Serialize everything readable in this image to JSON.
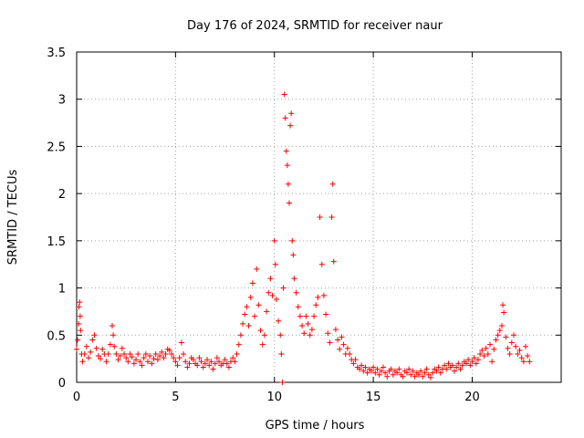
{
  "chart_data": {
    "type": "scatter",
    "title": "Day 176 of 2024, SRMTID for receiver naur",
    "xlabel": "GPS time / hours",
    "ylabel": "SRMTID / TECUs",
    "xlim": [
      0,
      24.5
    ],
    "ylim": [
      0,
      3.5
    ],
    "grid": true,
    "marker": "+",
    "series_color": "#ff0000",
    "x_ticks": [
      {
        "value": 0,
        "label": "0"
      },
      {
        "value": 5,
        "label": "5"
      },
      {
        "value": 10,
        "label": "10"
      },
      {
        "value": 15,
        "label": "15"
      },
      {
        "value": 20,
        "label": "20"
      }
    ],
    "y_ticks": [
      {
        "value": 0,
        "label": "0"
      },
      {
        "value": 0.5,
        "label": "0.5"
      },
      {
        "value": 1,
        "label": "1"
      },
      {
        "value": 1.5,
        "label": "1.5"
      },
      {
        "value": 2,
        "label": "2"
      },
      {
        "value": 2.5,
        "label": "2.5"
      },
      {
        "value": 3,
        "label": "3"
      },
      {
        "value": 3.5,
        "label": "3.5"
      }
    ],
    "series": [
      {
        "name": "SRMTID",
        "points": [
          [
            0.0,
            0.35
          ],
          [
            0.05,
            0.45
          ],
          [
            0.1,
            0.62
          ],
          [
            0.12,
            0.8
          ],
          [
            0.15,
            0.85
          ],
          [
            0.18,
            0.7
          ],
          [
            0.2,
            0.55
          ],
          [
            0.25,
            0.3
          ],
          [
            0.3,
            0.22
          ],
          [
            0.4,
            0.3
          ],
          [
            0.5,
            0.38
          ],
          [
            0.6,
            0.26
          ],
          [
            0.7,
            0.32
          ],
          [
            0.8,
            0.45
          ],
          [
            0.9,
            0.5
          ],
          [
            1.0,
            0.36
          ],
          [
            1.1,
            0.28
          ],
          [
            1.2,
            0.25
          ],
          [
            1.3,
            0.35
          ],
          [
            1.4,
            0.3
          ],
          [
            1.5,
            0.22
          ],
          [
            1.6,
            0.3
          ],
          [
            1.7,
            0.4
          ],
          [
            1.8,
            0.6
          ],
          [
            1.85,
            0.5
          ],
          [
            1.9,
            0.38
          ],
          [
            2.0,
            0.3
          ],
          [
            2.1,
            0.24
          ],
          [
            2.2,
            0.28
          ],
          [
            2.3,
            0.36
          ],
          [
            2.4,
            0.3
          ],
          [
            2.5,
            0.26
          ],
          [
            2.6,
            0.22
          ],
          [
            2.7,
            0.3
          ],
          [
            2.8,
            0.27
          ],
          [
            2.9,
            0.2
          ],
          [
            3.0,
            0.24
          ],
          [
            3.1,
            0.3
          ],
          [
            3.2,
            0.22
          ],
          [
            3.3,
            0.18
          ],
          [
            3.4,
            0.26
          ],
          [
            3.5,
            0.3
          ],
          [
            3.6,
            0.22
          ],
          [
            3.7,
            0.28
          ],
          [
            3.8,
            0.2
          ],
          [
            3.9,
            0.25
          ],
          [
            4.0,
            0.3
          ],
          [
            4.1,
            0.24
          ],
          [
            4.2,
            0.28
          ],
          [
            4.3,
            0.32
          ],
          [
            4.4,
            0.26
          ],
          [
            4.5,
            0.3
          ],
          [
            4.6,
            0.35
          ],
          [
            4.7,
            0.34
          ],
          [
            4.8,
            0.3
          ],
          [
            4.9,
            0.26
          ],
          [
            5.0,
            0.22
          ],
          [
            5.1,
            0.18
          ],
          [
            5.2,
            0.26
          ],
          [
            5.3,
            0.42
          ],
          [
            5.4,
            0.3
          ],
          [
            5.5,
            0.22
          ],
          [
            5.6,
            0.16
          ],
          [
            5.7,
            0.2
          ],
          [
            5.8,
            0.26
          ],
          [
            5.9,
            0.24
          ],
          [
            6.0,
            0.2
          ],
          [
            6.1,
            0.18
          ],
          [
            6.2,
            0.26
          ],
          [
            6.3,
            0.22
          ],
          [
            6.4,
            0.16
          ],
          [
            6.5,
            0.2
          ],
          [
            6.6,
            0.24
          ],
          [
            6.7,
            0.18
          ],
          [
            6.8,
            0.22
          ],
          [
            6.9,
            0.14
          ],
          [
            7.0,
            0.2
          ],
          [
            7.1,
            0.26
          ],
          [
            7.2,
            0.22
          ],
          [
            7.3,
            0.18
          ],
          [
            7.4,
            0.2
          ],
          [
            7.5,
            0.24
          ],
          [
            7.6,
            0.2
          ],
          [
            7.7,
            0.16
          ],
          [
            7.8,
            0.22
          ],
          [
            7.9,
            0.26
          ],
          [
            8.0,
            0.22
          ],
          [
            8.1,
            0.3
          ],
          [
            8.2,
            0.4
          ],
          [
            8.3,
            0.5
          ],
          [
            8.4,
            0.62
          ],
          [
            8.5,
            0.72
          ],
          [
            8.6,
            0.8
          ],
          [
            8.7,
            0.6
          ],
          [
            8.8,
            0.9
          ],
          [
            8.9,
            1.05
          ],
          [
            9.0,
            0.7
          ],
          [
            9.1,
            1.2
          ],
          [
            9.2,
            0.82
          ],
          [
            9.3,
            0.55
          ],
          [
            9.4,
            0.4
          ],
          [
            9.5,
            0.5
          ],
          [
            9.6,
            0.75
          ],
          [
            9.7,
            0.95
          ],
          [
            9.8,
            1.1
          ],
          [
            9.9,
            0.92
          ],
          [
            10.0,
            1.5
          ],
          [
            10.05,
            1.25
          ],
          [
            10.1,
            0.88
          ],
          [
            10.2,
            0.65
          ],
          [
            10.3,
            0.5
          ],
          [
            10.35,
            0.3
          ],
          [
            10.4,
            0.0
          ],
          [
            10.45,
            1.0
          ],
          [
            10.5,
            3.05
          ],
          [
            10.55,
            2.8
          ],
          [
            10.6,
            2.45
          ],
          [
            10.65,
            2.3
          ],
          [
            10.7,
            2.1
          ],
          [
            10.75,
            1.9
          ],
          [
            10.8,
            2.72
          ],
          [
            10.85,
            2.85
          ],
          [
            10.9,
            1.5
          ],
          [
            10.95,
            1.35
          ],
          [
            11.0,
            1.1
          ],
          [
            11.1,
            0.95
          ],
          [
            11.2,
            0.8
          ],
          [
            11.3,
            0.7
          ],
          [
            11.4,
            0.6
          ],
          [
            11.5,
            0.52
          ],
          [
            11.6,
            0.7
          ],
          [
            11.7,
            0.62
          ],
          [
            11.8,
            0.5
          ],
          [
            11.9,
            0.56
          ],
          [
            12.0,
            0.7
          ],
          [
            12.1,
            0.82
          ],
          [
            12.2,
            0.9
          ],
          [
            12.3,
            1.75
          ],
          [
            12.4,
            1.25
          ],
          [
            12.5,
            0.92
          ],
          [
            12.6,
            0.72
          ],
          [
            12.7,
            0.52
          ],
          [
            12.8,
            0.42
          ],
          [
            12.9,
            1.75
          ],
          [
            12.95,
            2.1
          ],
          [
            13.0,
            1.28
          ],
          [
            13.1,
            0.56
          ],
          [
            13.2,
            0.45
          ],
          [
            13.3,
            0.35
          ],
          [
            13.4,
            0.48
          ],
          [
            13.5,
            0.4
          ],
          [
            13.6,
            0.3
          ],
          [
            13.7,
            0.36
          ],
          [
            13.8,
            0.3
          ],
          [
            13.9,
            0.24
          ],
          [
            14.0,
            0.2
          ],
          [
            14.1,
            0.24
          ],
          [
            14.2,
            0.16
          ],
          [
            14.3,
            0.14
          ],
          [
            14.4,
            0.18
          ],
          [
            14.5,
            0.12
          ],
          [
            14.6,
            0.16
          ],
          [
            14.7,
            0.1
          ],
          [
            14.8,
            0.14
          ],
          [
            14.9,
            0.12
          ],
          [
            15.0,
            0.16
          ],
          [
            15.1,
            0.1
          ],
          [
            15.2,
            0.14
          ],
          [
            15.3,
            0.08
          ],
          [
            15.4,
            0.12
          ],
          [
            15.5,
            0.16
          ],
          [
            15.6,
            0.1
          ],
          [
            15.7,
            0.06
          ],
          [
            15.8,
            0.12
          ],
          [
            15.9,
            0.14
          ],
          [
            16.0,
            0.08
          ],
          [
            16.1,
            0.12
          ],
          [
            16.2,
            0.1
          ],
          [
            16.3,
            0.14
          ],
          [
            16.4,
            0.08
          ],
          [
            16.5,
            0.06
          ],
          [
            16.6,
            0.12
          ],
          [
            16.7,
            0.1
          ],
          [
            16.8,
            0.14
          ],
          [
            16.9,
            0.08
          ],
          [
            17.0,
            0.12
          ],
          [
            17.1,
            0.06
          ],
          [
            17.2,
            0.1
          ],
          [
            17.3,
            0.08
          ],
          [
            17.4,
            0.12
          ],
          [
            17.5,
            0.06
          ],
          [
            17.6,
            0.1
          ],
          [
            17.7,
            0.14
          ],
          [
            17.8,
            0.08
          ],
          [
            17.9,
            0.05
          ],
          [
            18.0,
            0.1
          ],
          [
            18.1,
            0.14
          ],
          [
            18.2,
            0.12
          ],
          [
            18.3,
            0.16
          ],
          [
            18.4,
            0.1
          ],
          [
            18.5,
            0.14
          ],
          [
            18.6,
            0.18
          ],
          [
            18.7,
            0.14
          ],
          [
            18.8,
            0.2
          ],
          [
            18.9,
            0.16
          ],
          [
            19.0,
            0.18
          ],
          [
            19.1,
            0.12
          ],
          [
            19.2,
            0.16
          ],
          [
            19.3,
            0.2
          ],
          [
            19.4,
            0.14
          ],
          [
            19.5,
            0.18
          ],
          [
            19.6,
            0.22
          ],
          [
            19.7,
            0.2
          ],
          [
            19.8,
            0.24
          ],
          [
            19.9,
            0.18
          ],
          [
            20.0,
            0.22
          ],
          [
            20.1,
            0.26
          ],
          [
            20.2,
            0.2
          ],
          [
            20.3,
            0.24
          ],
          [
            20.4,
            0.3
          ],
          [
            20.5,
            0.34
          ],
          [
            20.6,
            0.28
          ],
          [
            20.7,
            0.36
          ],
          [
            20.8,
            0.3
          ],
          [
            20.9,
            0.4
          ],
          [
            21.0,
            0.22
          ],
          [
            21.1,
            0.35
          ],
          [
            21.2,
            0.45
          ],
          [
            21.3,
            0.5
          ],
          [
            21.4,
            0.55
          ],
          [
            21.5,
            0.6
          ],
          [
            21.55,
            0.82
          ],
          [
            21.6,
            0.74
          ],
          [
            21.7,
            0.48
          ],
          [
            21.8,
            0.36
          ],
          [
            21.9,
            0.3
          ],
          [
            22.0,
            0.42
          ],
          [
            22.1,
            0.5
          ],
          [
            22.2,
            0.38
          ],
          [
            22.3,
            0.3
          ],
          [
            22.4,
            0.34
          ],
          [
            22.5,
            0.26
          ],
          [
            22.6,
            0.22
          ],
          [
            22.7,
            0.38
          ],
          [
            22.8,
            0.28
          ],
          [
            22.9,
            0.22
          ]
        ]
      }
    ]
  }
}
